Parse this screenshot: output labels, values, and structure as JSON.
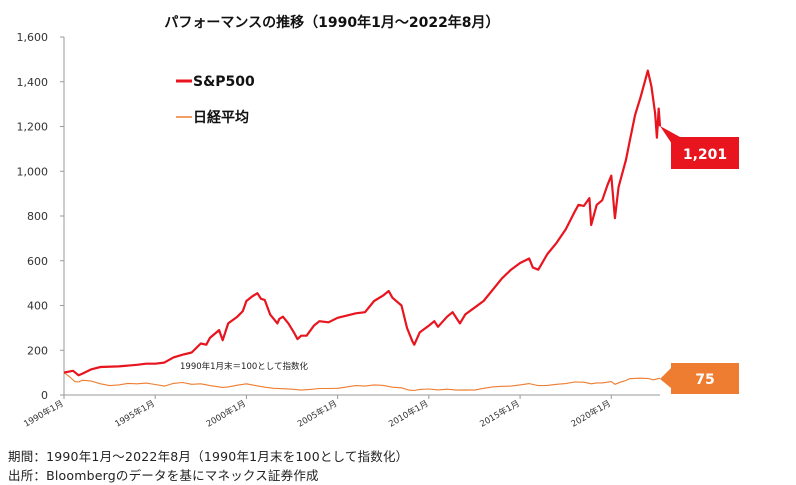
{
  "chart_data": {
    "type": "line",
    "title": "パフォーマンスの推移（1990年1月～2022年8月）",
    "annotation": "1990年1月末＝100として指数化",
    "ylim": [
      0,
      1600
    ],
    "y_ticks": [
      "0",
      "200",
      "400",
      "600",
      "800",
      "1,000",
      "1,200",
      "1,400",
      "1,600"
    ],
    "x_ticks": [
      "1990年1月",
      "1995年1月",
      "2000年1月",
      "2005年1月",
      "2010年1月",
      "2015年1月",
      "2020年1月"
    ],
    "grid": false,
    "legend_position": "top-left",
    "series": [
      {
        "name": "S&P500",
        "color": "#e8141e",
        "end_label": "1,201",
        "points": [
          [
            1990.0,
            100
          ],
          [
            1990.5,
            108
          ],
          [
            1990.8,
            88
          ],
          [
            1991.0,
            95
          ],
          [
            1991.5,
            115
          ],
          [
            1992.0,
            125
          ],
          [
            1993.0,
            128
          ],
          [
            1994.0,
            135
          ],
          [
            1994.5,
            140
          ],
          [
            1995.0,
            140
          ],
          [
            1995.5,
            145
          ],
          [
            1996.0,
            168
          ],
          [
            1996.5,
            180
          ],
          [
            1997.0,
            190
          ],
          [
            1997.5,
            230
          ],
          [
            1997.8,
            225
          ],
          [
            1998.0,
            255
          ],
          [
            1998.5,
            290
          ],
          [
            1998.7,
            245
          ],
          [
            1999.0,
            320
          ],
          [
            1999.5,
            350
          ],
          [
            1999.8,
            375
          ],
          [
            2000.0,
            420
          ],
          [
            2000.3,
            440
          ],
          [
            2000.6,
            455
          ],
          [
            2000.8,
            430
          ],
          [
            2001.0,
            425
          ],
          [
            2001.3,
            360
          ],
          [
            2001.7,
            320
          ],
          [
            2001.8,
            340
          ],
          [
            2002.0,
            350
          ],
          [
            2002.3,
            320
          ],
          [
            2002.6,
            280
          ],
          [
            2002.8,
            250
          ],
          [
            2003.0,
            265
          ],
          [
            2003.3,
            265
          ],
          [
            2003.7,
            310
          ],
          [
            2004.0,
            330
          ],
          [
            2004.5,
            325
          ],
          [
            2005.0,
            345
          ],
          [
            2005.5,
            355
          ],
          [
            2006.0,
            365
          ],
          [
            2006.5,
            370
          ],
          [
            2007.0,
            420
          ],
          [
            2007.5,
            445
          ],
          [
            2007.8,
            465
          ],
          [
            2008.0,
            435
          ],
          [
            2008.5,
            400
          ],
          [
            2008.8,
            300
          ],
          [
            2009.1,
            240
          ],
          [
            2009.2,
            225
          ],
          [
            2009.5,
            280
          ],
          [
            2010.0,
            310
          ],
          [
            2010.3,
            330
          ],
          [
            2010.5,
            305
          ],
          [
            2011.0,
            350
          ],
          [
            2011.3,
            370
          ],
          [
            2011.7,
            320
          ],
          [
            2012.0,
            360
          ],
          [
            2012.5,
            390
          ],
          [
            2013.0,
            420
          ],
          [
            2013.5,
            470
          ],
          [
            2014.0,
            520
          ],
          [
            2014.5,
            560
          ],
          [
            2015.0,
            590
          ],
          [
            2015.5,
            610
          ],
          [
            2015.7,
            570
          ],
          [
            2016.0,
            560
          ],
          [
            2016.5,
            630
          ],
          [
            2017.0,
            680
          ],
          [
            2017.5,
            740
          ],
          [
            2018.0,
            820
          ],
          [
            2018.2,
            850
          ],
          [
            2018.5,
            845
          ],
          [
            2018.8,
            880
          ],
          [
            2018.9,
            760
          ],
          [
            2019.2,
            850
          ],
          [
            2019.5,
            870
          ],
          [
            2019.8,
            940
          ],
          [
            2020.0,
            980
          ],
          [
            2020.2,
            790
          ],
          [
            2020.4,
            930
          ],
          [
            2020.8,
            1050
          ],
          [
            2021.0,
            1130
          ],
          [
            2021.3,
            1250
          ],
          [
            2021.6,
            1330
          ],
          [
            2021.9,
            1420
          ],
          [
            2022.0,
            1450
          ],
          [
            2022.2,
            1380
          ],
          [
            2022.4,
            1260
          ],
          [
            2022.5,
            1150
          ],
          [
            2022.6,
            1280
          ],
          [
            2022.67,
            1201
          ]
        ]
      },
      {
        "name": "日経平均",
        "color": "#ee7d31",
        "end_label": "75",
        "points": [
          [
            1990.0,
            100
          ],
          [
            1990.3,
            82
          ],
          [
            1990.6,
            60
          ],
          [
            1990.8,
            58
          ],
          [
            1991.0,
            66
          ],
          [
            1991.5,
            62
          ],
          [
            1992.0,
            50
          ],
          [
            1992.5,
            42
          ],
          [
            1993.0,
            45
          ],
          [
            1993.5,
            52
          ],
          [
            1994.0,
            50
          ],
          [
            1994.5,
            53
          ],
          [
            1995.0,
            47
          ],
          [
            1995.5,
            40
          ],
          [
            1996.0,
            52
          ],
          [
            1996.5,
            56
          ],
          [
            1997.0,
            48
          ],
          [
            1997.5,
            50
          ],
          [
            1998.0,
            42
          ],
          [
            1998.7,
            34
          ],
          [
            1999.0,
            36
          ],
          [
            1999.5,
            44
          ],
          [
            2000.0,
            50
          ],
          [
            2000.5,
            42
          ],
          [
            2001.0,
            35
          ],
          [
            2001.5,
            30
          ],
          [
            2002.0,
            28
          ],
          [
            2002.5,
            26
          ],
          [
            2003.0,
            22
          ],
          [
            2003.5,
            25
          ],
          [
            2004.0,
            29
          ],
          [
            2004.5,
            29
          ],
          [
            2005.0,
            30
          ],
          [
            2005.5,
            36
          ],
          [
            2006.0,
            42
          ],
          [
            2006.5,
            40
          ],
          [
            2007.0,
            45
          ],
          [
            2007.5,
            43
          ],
          [
            2008.0,
            35
          ],
          [
            2008.5,
            32
          ],
          [
            2008.9,
            22
          ],
          [
            2009.2,
            20
          ],
          [
            2009.5,
            25
          ],
          [
            2010.0,
            27
          ],
          [
            2010.5,
            23
          ],
          [
            2011.0,
            26
          ],
          [
            2011.5,
            22
          ],
          [
            2012.0,
            23
          ],
          [
            2012.5,
            22
          ],
          [
            2013.0,
            30
          ],
          [
            2013.5,
            36
          ],
          [
            2014.0,
            39
          ],
          [
            2014.5,
            40
          ],
          [
            2015.0,
            45
          ],
          [
            2015.5,
            51
          ],
          [
            2016.0,
            42
          ],
          [
            2016.5,
            43
          ],
          [
            2017.0,
            48
          ],
          [
            2017.5,
            51
          ],
          [
            2018.0,
            58
          ],
          [
            2018.5,
            57
          ],
          [
            2018.9,
            50
          ],
          [
            2019.2,
            54
          ],
          [
            2019.5,
            54
          ],
          [
            2020.0,
            60
          ],
          [
            2020.2,
            48
          ],
          [
            2020.5,
            57
          ],
          [
            2020.8,
            65
          ],
          [
            2021.0,
            73
          ],
          [
            2021.5,
            75
          ],
          [
            2022.0,
            74
          ],
          [
            2022.3,
            68
          ],
          [
            2022.67,
            75
          ]
        ]
      }
    ]
  },
  "footer": {
    "period": "期間：1990年1月～2022年8月（1990年1月末を100として指数化）",
    "source": "出所：Bloombergのデータを基にマネックス証券作成"
  }
}
